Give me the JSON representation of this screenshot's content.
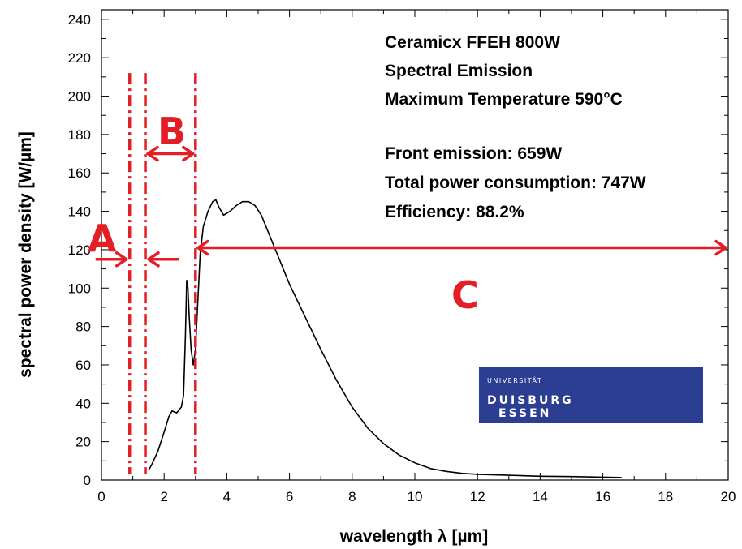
{
  "chart_data": {
    "type": "line",
    "xlabel": "wavelength λ [µm]",
    "ylabel": "spectral power density [W/µm]",
    "xlim": [
      0,
      20
    ],
    "ylim": [
      0,
      245
    ],
    "x_ticks": [
      0,
      2,
      4,
      6,
      8,
      10,
      12,
      14,
      16,
      18,
      20
    ],
    "y_ticks": [
      0,
      20,
      40,
      60,
      80,
      100,
      120,
      140,
      160,
      180,
      200,
      220,
      240
    ],
    "grid": false,
    "series": [
      {
        "x": [
          1.5,
          1.6,
          1.8,
          2.0,
          2.15,
          2.25,
          2.4,
          2.55,
          2.62,
          2.68,
          2.72,
          2.76,
          2.8,
          2.86,
          2.93,
          3.0,
          3.08,
          3.15,
          3.25,
          3.4,
          3.55,
          3.65,
          3.75,
          3.9,
          4.1,
          4.3,
          4.5,
          4.7,
          4.9,
          5.1,
          5.3,
          5.6,
          6.0,
          6.5,
          7.0,
          7.5,
          8.0,
          8.5,
          9.0,
          9.5,
          10.0,
          10.5,
          11.0,
          11.5,
          12.0,
          13.0,
          14.0,
          15.0,
          16.0,
          16.6
        ],
        "y": [
          5,
          8,
          15,
          25,
          33,
          36,
          35,
          38,
          44,
          75,
          104,
          100,
          85,
          68,
          60,
          68,
          95,
          118,
          132,
          140,
          145,
          146,
          142,
          138,
          140,
          143,
          145,
          145,
          143,
          138,
          130,
          118,
          102,
          85,
          68,
          52,
          38,
          27,
          19,
          13,
          9,
          6,
          4.5,
          3.5,
          3,
          2.5,
          2,
          1.8,
          1.5,
          1.3
        ]
      }
    ],
    "annotations": {
      "lines": [
        "Ceramicx FFEH 800W",
        "Spectral Emission",
        "Maximum Temperature 590°C",
        "Front emission: 659W",
        "Total power consumption: 747W",
        "Efficiency: 88.2%"
      ]
    },
    "region_boundaries": [
      0.9,
      1.4,
      3.0
    ],
    "regions": [
      {
        "label": "A",
        "arrow_at_y": 115
      },
      {
        "label": "B",
        "from": 1.4,
        "to": 3.0,
        "arrow_at_y": 170
      },
      {
        "label": "C",
        "from": 3.0,
        "to": 20,
        "arrow_at_y": 121
      }
    ],
    "colors": {
      "curve": "#000000",
      "region_markup": "#e31e24",
      "logo_bg": "#2c3e92"
    }
  },
  "logo": {
    "top_line": "UNIVERSITÄT",
    "word1": "DUISBURG",
    "word2": "ESSEN"
  }
}
